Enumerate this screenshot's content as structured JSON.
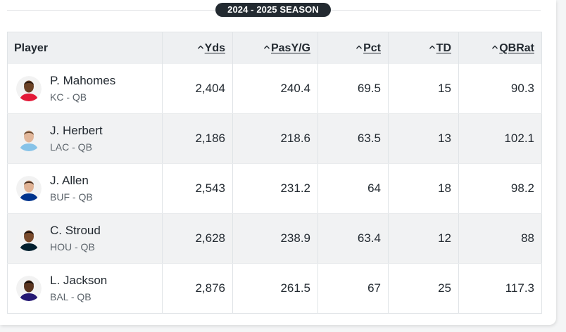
{
  "season_label": "2024 - 2025 SEASON",
  "columns": {
    "player": "Player",
    "yds": "Yds",
    "pas_y_g": "PasY/G",
    "pct": "Pct",
    "td": "TD",
    "qbrat": "QBRat"
  },
  "players": [
    {
      "name": "P. Mahomes",
      "team_pos": "KC - QB",
      "yds": "2,404",
      "pas_y_g": "240.4",
      "pct": "69.5",
      "td": "15",
      "qbrat": "90.3",
      "jersey_color": "#e31837",
      "skin_color": "#6b4226",
      "hair_color": "#2b1a10"
    },
    {
      "name": "J. Herbert",
      "team_pos": "LAC - QB",
      "yds": "2,186",
      "pas_y_g": "218.6",
      "pct": "63.5",
      "td": "13",
      "qbrat": "102.1",
      "jersey_color": "#87c3e8",
      "skin_color": "#e2b79a",
      "hair_color": "#6a4a30"
    },
    {
      "name": "J. Allen",
      "team_pos": "BUF - QB",
      "yds": "2,543",
      "pas_y_g": "231.2",
      "pct": "64",
      "td": "18",
      "qbrat": "98.2",
      "jersey_color": "#00338d",
      "skin_color": "#e0b294",
      "hair_color": "#4a3020"
    },
    {
      "name": "C. Stroud",
      "team_pos": "HOU - QB",
      "yds": "2,628",
      "pas_y_g": "238.9",
      "pct": "63.4",
      "td": "12",
      "qbrat": "88",
      "jersey_color": "#03202f",
      "skin_color": "#7a4b2c",
      "hair_color": "#1a0f0a"
    },
    {
      "name": "L. Jackson",
      "team_pos": "BAL - QB",
      "yds": "2,876",
      "pas_y_g": "261.5",
      "pct": "67",
      "td": "25",
      "qbrat": "117.3",
      "jersey_color": "#241773",
      "skin_color": "#5a3520",
      "hair_color": "#140c08"
    }
  ]
}
